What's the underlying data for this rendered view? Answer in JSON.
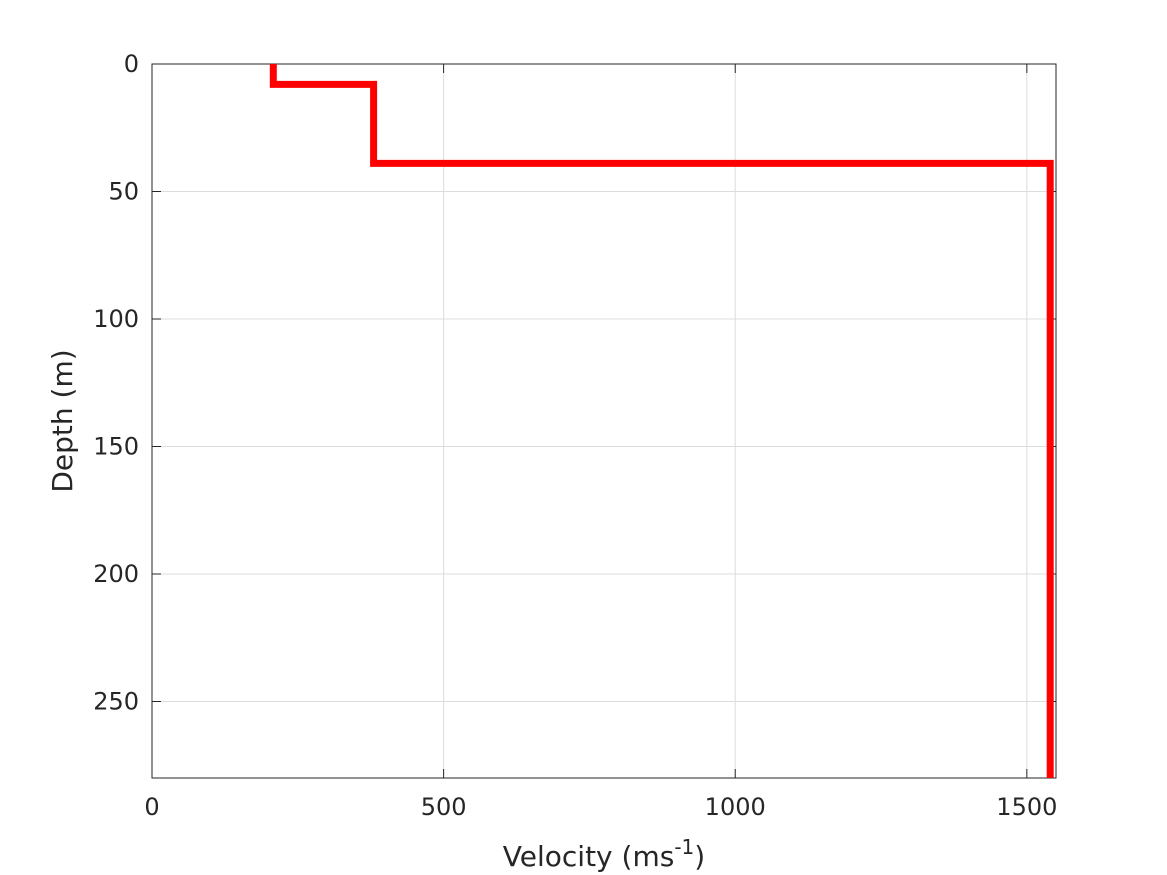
{
  "chart_data": {
    "type": "line",
    "title": "",
    "xlabel": {
      "base": "Velocity (ms",
      "sup": "-1",
      "close": ")"
    },
    "ylabel": "Depth (m)",
    "xlim": [
      0,
      1550
    ],
    "ylim": [
      0,
      280
    ],
    "y_reversed": true,
    "grid": true,
    "x_ticks": [
      0,
      500,
      1000,
      1500
    ],
    "y_ticks": [
      0,
      50,
      100,
      150,
      200,
      250
    ],
    "series": [
      {
        "color": "#ff0000",
        "x": [
          208,
          208,
          380,
          380,
          1540,
          1540
        ],
        "y": [
          0,
          8,
          8,
          39,
          39,
          280
        ]
      }
    ]
  }
}
